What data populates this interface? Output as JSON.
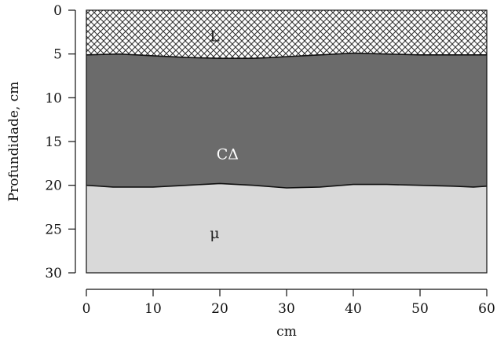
{
  "chart_data": {
    "type": "area",
    "title": "",
    "xlabel": "cm",
    "ylabel": "Profundidade, cm",
    "xlim": [
      0,
      60
    ],
    "ylim": [
      30,
      0
    ],
    "xticks": [
      "0",
      "10",
      "20",
      "30",
      "40",
      "50",
      "60"
    ],
    "yticks": [
      "0",
      "5",
      "10",
      "15",
      "20",
      "25",
      "30"
    ],
    "grid": false,
    "boundaries": [
      {
        "name": "L / CΔ",
        "x": [
          0,
          5,
          10,
          15,
          20,
          25,
          28,
          30,
          35,
          40,
          45,
          50,
          55,
          60
        ],
        "y": [
          5.1,
          5.0,
          5.2,
          5.4,
          5.5,
          5.5,
          5.4,
          5.3,
          5.1,
          4.9,
          5.0,
          5.1,
          5.1,
          5.1
        ]
      },
      {
        "name": "CΔ / μ",
        "x": [
          0,
          4,
          10,
          15,
          20,
          25,
          30,
          35,
          40,
          45,
          50,
          55,
          58,
          60
        ],
        "y": [
          20.0,
          20.2,
          20.2,
          20.0,
          19.8,
          20.0,
          20.3,
          20.2,
          19.9,
          19.9,
          20.0,
          20.1,
          20.2,
          20.1
        ]
      }
    ],
    "layers": [
      {
        "label": "L",
        "pattern": "crosshatch",
        "color": "#ffffff",
        "text_color": "#222222",
        "label_x": 18.5,
        "label_depth": 3.0
      },
      {
        "label": "CΔ",
        "pattern": "solid",
        "color": "#6b6b6b",
        "text_color": "#ffffff",
        "label_x": 19.5,
        "label_depth": 16.5
      },
      {
        "label": "μ",
        "pattern": "solid",
        "color": "#d9d9d9",
        "text_color": "#222222",
        "label_x": 18.5,
        "label_depth": 25.5
      }
    ]
  }
}
